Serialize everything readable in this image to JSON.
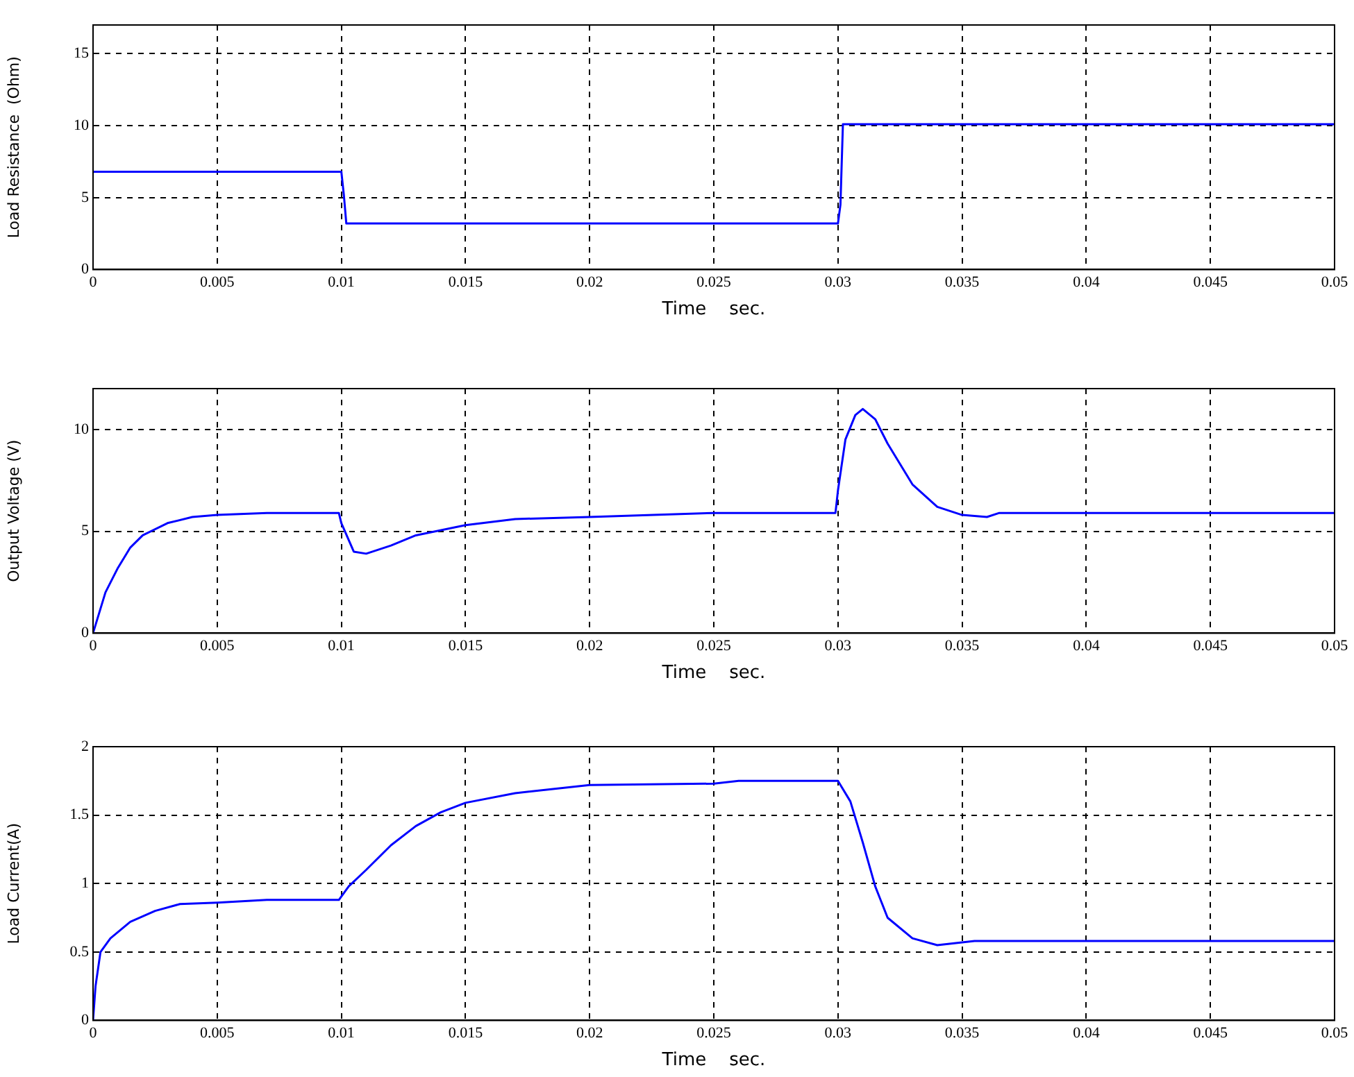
{
  "chart_data": [
    {
      "type": "line",
      "xlabel": "Time    sec.",
      "ylabel": "Load Resistance  (Ohm)",
      "xlim": [
        0,
        0.05
      ],
      "xticks": [
        0,
        0.005,
        0.01,
        0.015,
        0.02,
        0.025,
        0.03,
        0.035,
        0.04,
        0.045,
        0.05
      ],
      "ylim": [
        0,
        17
      ],
      "yticks": [
        0,
        5,
        10,
        15
      ],
      "grid": true,
      "legend": false,
      "series": [
        {
          "color": "#0000ff",
          "x": [
            0,
            0.01,
            0.0101,
            0.0102,
            0.03,
            0.0301,
            0.0302,
            0.05
          ],
          "values": [
            6.8,
            6.8,
            5.2,
            3.2,
            3.2,
            4.5,
            10.1,
            10.1
          ]
        }
      ]
    },
    {
      "type": "line",
      "xlabel": "Time    sec.",
      "ylabel": "Output Voltage (V)",
      "xlim": [
        0,
        0.05
      ],
      "xticks": [
        0,
        0.005,
        0.01,
        0.015,
        0.02,
        0.025,
        0.03,
        0.035,
        0.04,
        0.045,
        0.05
      ],
      "ylim": [
        0,
        12
      ],
      "yticks": [
        0,
        5,
        10
      ],
      "grid": true,
      "legend": false,
      "series": [
        {
          "color": "#0000ff",
          "x": [
            0,
            0.0005,
            0.001,
            0.0015,
            0.002,
            0.003,
            0.004,
            0.005,
            0.007,
            0.0099,
            0.01,
            0.0105,
            0.011,
            0.012,
            0.013,
            0.015,
            0.017,
            0.02,
            0.025,
            0.0299,
            0.03,
            0.0303,
            0.0307,
            0.031,
            0.0315,
            0.032,
            0.033,
            0.034,
            0.035,
            0.036,
            0.0365,
            0.05
          ],
          "values": [
            0,
            2,
            3.2,
            4.2,
            4.8,
            5.4,
            5.7,
            5.8,
            5.9,
            5.9,
            5.4,
            4.0,
            3.9,
            4.3,
            4.8,
            5.3,
            5.6,
            5.7,
            5.9,
            5.9,
            7,
            9.5,
            10.7,
            11.0,
            10.5,
            9.3,
            7.3,
            6.2,
            5.8,
            5.7,
            5.9,
            5.9
          ]
        }
      ]
    },
    {
      "type": "line",
      "xlabel": "Time    sec.",
      "ylabel": "Load Current(A)",
      "xlim": [
        0,
        0.05
      ],
      "xticks": [
        0,
        0.005,
        0.01,
        0.015,
        0.02,
        0.025,
        0.03,
        0.035,
        0.04,
        0.045,
        0.05
      ],
      "ylim": [
        0,
        2
      ],
      "yticks": [
        0,
        0.5,
        1,
        1.5,
        2
      ],
      "grid": true,
      "legend": false,
      "series": [
        {
          "color": "#0000ff",
          "x": [
            0,
            0.0001,
            0.0003,
            0.0007,
            0.0015,
            0.0025,
            0.0035,
            0.005,
            0.007,
            0.0099,
            0.0103,
            0.011,
            0.012,
            0.013,
            0.014,
            0.015,
            0.017,
            0.02,
            0.025,
            0.026,
            0.03,
            0.0305,
            0.031,
            0.0315,
            0.032,
            0.033,
            0.034,
            0.035,
            0.0355,
            0.05
          ],
          "values": [
            0,
            0.25,
            0.5,
            0.6,
            0.72,
            0.8,
            0.85,
            0.86,
            0.88,
            0.88,
            0.98,
            1.1,
            1.28,
            1.42,
            1.52,
            1.59,
            1.66,
            1.72,
            1.73,
            1.75,
            1.75,
            1.6,
            1.3,
            0.98,
            0.75,
            0.6,
            0.55,
            0.57,
            0.58,
            0.58
          ]
        }
      ]
    }
  ]
}
